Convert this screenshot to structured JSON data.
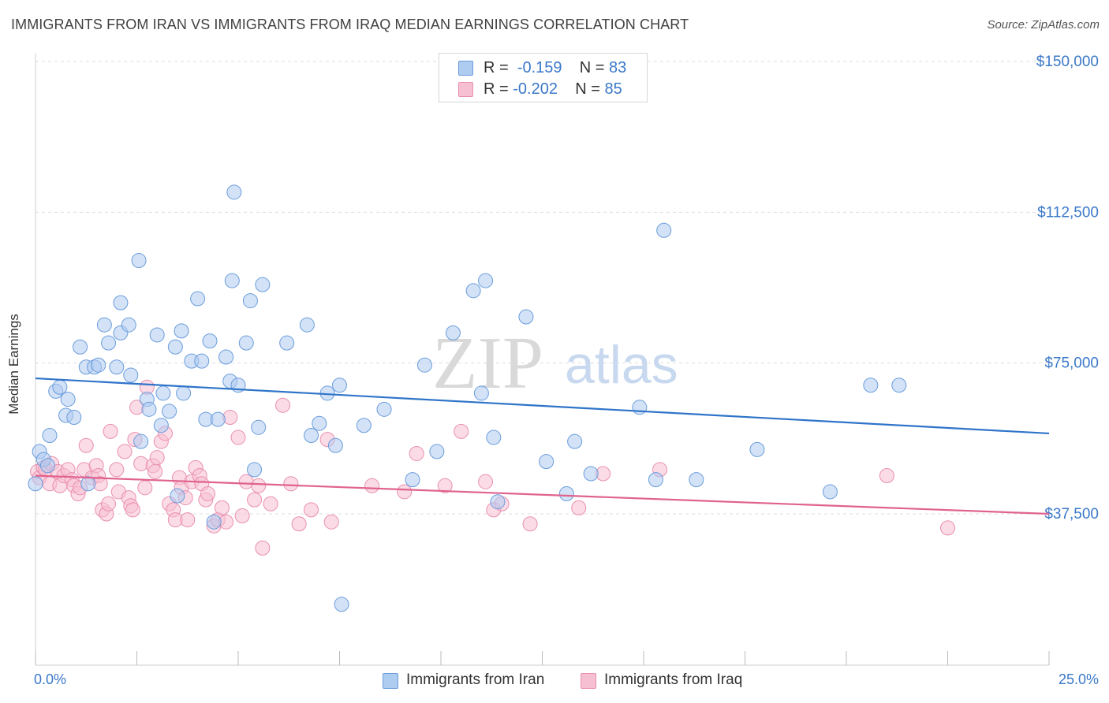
{
  "title": "IMMIGRANTS FROM IRAN VS IMMIGRANTS FROM IRAQ MEDIAN EARNINGS CORRELATION CHART",
  "source": "Source: ZipAtlas.com",
  "watermark": {
    "zip": "ZIP",
    "atlas": "atlas"
  },
  "legend_top": {
    "iran": {
      "r_label": "R =",
      "r_value": "-0.159",
      "n_label": "N =",
      "n_value": "83"
    },
    "iraq": {
      "r_label": "R =",
      "r_value": "-0.202",
      "n_label": "N =",
      "n_value": "85"
    }
  },
  "bottom_legend": {
    "iran": "Immigrants from Iran",
    "iraq": "Immigrants from Iraq"
  },
  "colors": {
    "iran_fill": "#aecbf0",
    "iran_stroke": "#6a9ddc",
    "iran_line": "#2f74c9",
    "iraq_fill": "#f7bfd2",
    "iraq_stroke": "#e98fb0",
    "iraq_line": "#e0638f",
    "accent_text": "#3a78c8",
    "grid": "#dddddd"
  },
  "chart_data": {
    "type": "scatter",
    "title": "IMMIGRANTS FROM IRAN VS IMMIGRANTS FROM IRAQ MEDIAN EARNINGS CORRELATION CHART",
    "xlabel": "",
    "ylabel": "Median Earnings",
    "xlim": [
      0,
      25
    ],
    "ylim": [
      0,
      155000
    ],
    "x_tick_labels": [
      "0.0%",
      "25.0%"
    ],
    "y_ticks": [
      37500,
      75000,
      112500,
      150000
    ],
    "y_tick_labels": [
      "$37,500",
      "$75,000",
      "$112,500",
      "$150,000"
    ],
    "grid": true,
    "legend_position": "top-center",
    "series": [
      {
        "name": "Immigrants from Iran",
        "r": -0.159,
        "n": 83,
        "trend": {
          "x": [
            0,
            25
          ],
          "y": [
            71200,
            57500
          ]
        },
        "points": [
          [
            0.0,
            45000
          ],
          [
            0.1,
            53000
          ],
          [
            0.2,
            51000
          ],
          [
            0.3,
            49500
          ],
          [
            0.35,
            57000
          ],
          [
            0.5,
            68000
          ],
          [
            0.6,
            69000
          ],
          [
            0.8,
            66000
          ],
          [
            0.75,
            62000
          ],
          [
            0.95,
            61500
          ],
          [
            1.1,
            79000
          ],
          [
            1.25,
            74000
          ],
          [
            1.45,
            74000
          ],
          [
            1.55,
            74500
          ],
          [
            1.3,
            45000
          ],
          [
            1.8,
            80000
          ],
          [
            1.7,
            84500
          ],
          [
            2.0,
            74000
          ],
          [
            2.1,
            82500
          ],
          [
            2.3,
            84500
          ],
          [
            2.1,
            90000
          ],
          [
            2.35,
            72000
          ],
          [
            2.6,
            55500
          ],
          [
            2.55,
            100500
          ],
          [
            2.75,
            66000
          ],
          [
            2.8,
            63500
          ],
          [
            3.0,
            82000
          ],
          [
            3.1,
            59500
          ],
          [
            3.15,
            67500
          ],
          [
            3.3,
            63000
          ],
          [
            3.45,
            79000
          ],
          [
            3.5,
            42000
          ],
          [
            3.6,
            83000
          ],
          [
            3.65,
            67500
          ],
          [
            3.85,
            75500
          ],
          [
            4.0,
            91000
          ],
          [
            4.1,
            75500
          ],
          [
            4.2,
            61000
          ],
          [
            4.3,
            80500
          ],
          [
            4.4,
            35500
          ],
          [
            4.5,
            61000
          ],
          [
            4.7,
            76500
          ],
          [
            4.8,
            70500
          ],
          [
            4.85,
            95500
          ],
          [
            4.9,
            117500
          ],
          [
            5.0,
            69500
          ],
          [
            5.2,
            80000
          ],
          [
            5.3,
            90500
          ],
          [
            5.5,
            59000
          ],
          [
            5.4,
            48500
          ],
          [
            5.6,
            94500
          ],
          [
            6.2,
            80000
          ],
          [
            6.8,
            57000
          ],
          [
            6.7,
            84500
          ],
          [
            7.0,
            60000
          ],
          [
            7.2,
            67500
          ],
          [
            7.4,
            54500
          ],
          [
            7.5,
            69500
          ],
          [
            7.55,
            15000
          ],
          [
            8.1,
            59500
          ],
          [
            8.6,
            63500
          ],
          [
            9.3,
            46000
          ],
          [
            9.6,
            74500
          ],
          [
            9.9,
            53000
          ],
          [
            10.3,
            82500
          ],
          [
            10.8,
            93000
          ],
          [
            11.0,
            67500
          ],
          [
            11.1,
            95500
          ],
          [
            11.3,
            56500
          ],
          [
            11.4,
            40500
          ],
          [
            12.1,
            86500
          ],
          [
            12.6,
            50500
          ],
          [
            13.1,
            42500
          ],
          [
            13.3,
            55500
          ],
          [
            13.7,
            47500
          ],
          [
            14.9,
            64000
          ],
          [
            15.3,
            46000
          ],
          [
            15.5,
            108000
          ],
          [
            16.3,
            46000
          ],
          [
            17.8,
            53500
          ],
          [
            19.6,
            43000
          ],
          [
            20.6,
            69500
          ],
          [
            21.3,
            69500
          ]
        ]
      },
      {
        "name": "Immigrants from Iraq",
        "r": -0.202,
        "n": 85,
        "trend": {
          "x": [
            0,
            25
          ],
          "y": [
            47000,
            37500
          ]
        },
        "points": [
          [
            0.05,
            48000
          ],
          [
            0.1,
            46500
          ],
          [
            0.2,
            49000
          ],
          [
            0.25,
            48500
          ],
          [
            0.35,
            45000
          ],
          [
            0.4,
            50000
          ],
          [
            0.55,
            48000
          ],
          [
            0.6,
            44500
          ],
          [
            0.7,
            47000
          ],
          [
            0.8,
            48500
          ],
          [
            0.9,
            46000
          ],
          [
            0.95,
            44500
          ],
          [
            1.05,
            42500
          ],
          [
            1.1,
            44000
          ],
          [
            1.2,
            48500
          ],
          [
            1.25,
            54500
          ],
          [
            1.4,
            46500
          ],
          [
            1.5,
            49500
          ],
          [
            1.55,
            47000
          ],
          [
            1.6,
            45000
          ],
          [
            1.65,
            38500
          ],
          [
            1.75,
            37500
          ],
          [
            1.8,
            40000
          ],
          [
            1.85,
            58000
          ],
          [
            2.0,
            48500
          ],
          [
            2.05,
            43000
          ],
          [
            2.2,
            53000
          ],
          [
            2.3,
            41500
          ],
          [
            2.35,
            39500
          ],
          [
            2.4,
            38500
          ],
          [
            2.45,
            56000
          ],
          [
            2.5,
            64000
          ],
          [
            2.6,
            50000
          ],
          [
            2.7,
            44000
          ],
          [
            2.75,
            69000
          ],
          [
            2.9,
            49500
          ],
          [
            2.95,
            48000
          ],
          [
            3.0,
            51500
          ],
          [
            3.1,
            55500
          ],
          [
            3.2,
            57500
          ],
          [
            3.3,
            40000
          ],
          [
            3.4,
            38500
          ],
          [
            3.45,
            36000
          ],
          [
            3.55,
            46500
          ],
          [
            3.6,
            44000
          ],
          [
            3.7,
            41500
          ],
          [
            3.75,
            36000
          ],
          [
            3.85,
            45500
          ],
          [
            3.95,
            49000
          ],
          [
            4.05,
            47000
          ],
          [
            4.1,
            45000
          ],
          [
            4.2,
            41000
          ],
          [
            4.25,
            42500
          ],
          [
            4.4,
            34500
          ],
          [
            4.5,
            36000
          ],
          [
            4.6,
            39000
          ],
          [
            4.7,
            35500
          ],
          [
            4.8,
            61500
          ],
          [
            5.0,
            56500
          ],
          [
            5.1,
            37000
          ],
          [
            5.2,
            45500
          ],
          [
            5.4,
            41000
          ],
          [
            5.5,
            44500
          ],
          [
            5.6,
            29000
          ],
          [
            5.8,
            40000
          ],
          [
            6.1,
            64500
          ],
          [
            6.3,
            45000
          ],
          [
            6.5,
            35000
          ],
          [
            6.8,
            38500
          ],
          [
            7.2,
            56000
          ],
          [
            7.3,
            35500
          ],
          [
            8.3,
            44500
          ],
          [
            9.1,
            43000
          ],
          [
            9.4,
            52500
          ],
          [
            10.1,
            44500
          ],
          [
            10.5,
            58000
          ],
          [
            11.1,
            45500
          ],
          [
            11.3,
            38500
          ],
          [
            11.5,
            40000
          ],
          [
            12.2,
            35000
          ],
          [
            13.4,
            39000
          ],
          [
            14.0,
            47500
          ],
          [
            15.4,
            48500
          ],
          [
            22.5,
            34000
          ],
          [
            21.0,
            47000
          ]
        ]
      }
    ]
  }
}
